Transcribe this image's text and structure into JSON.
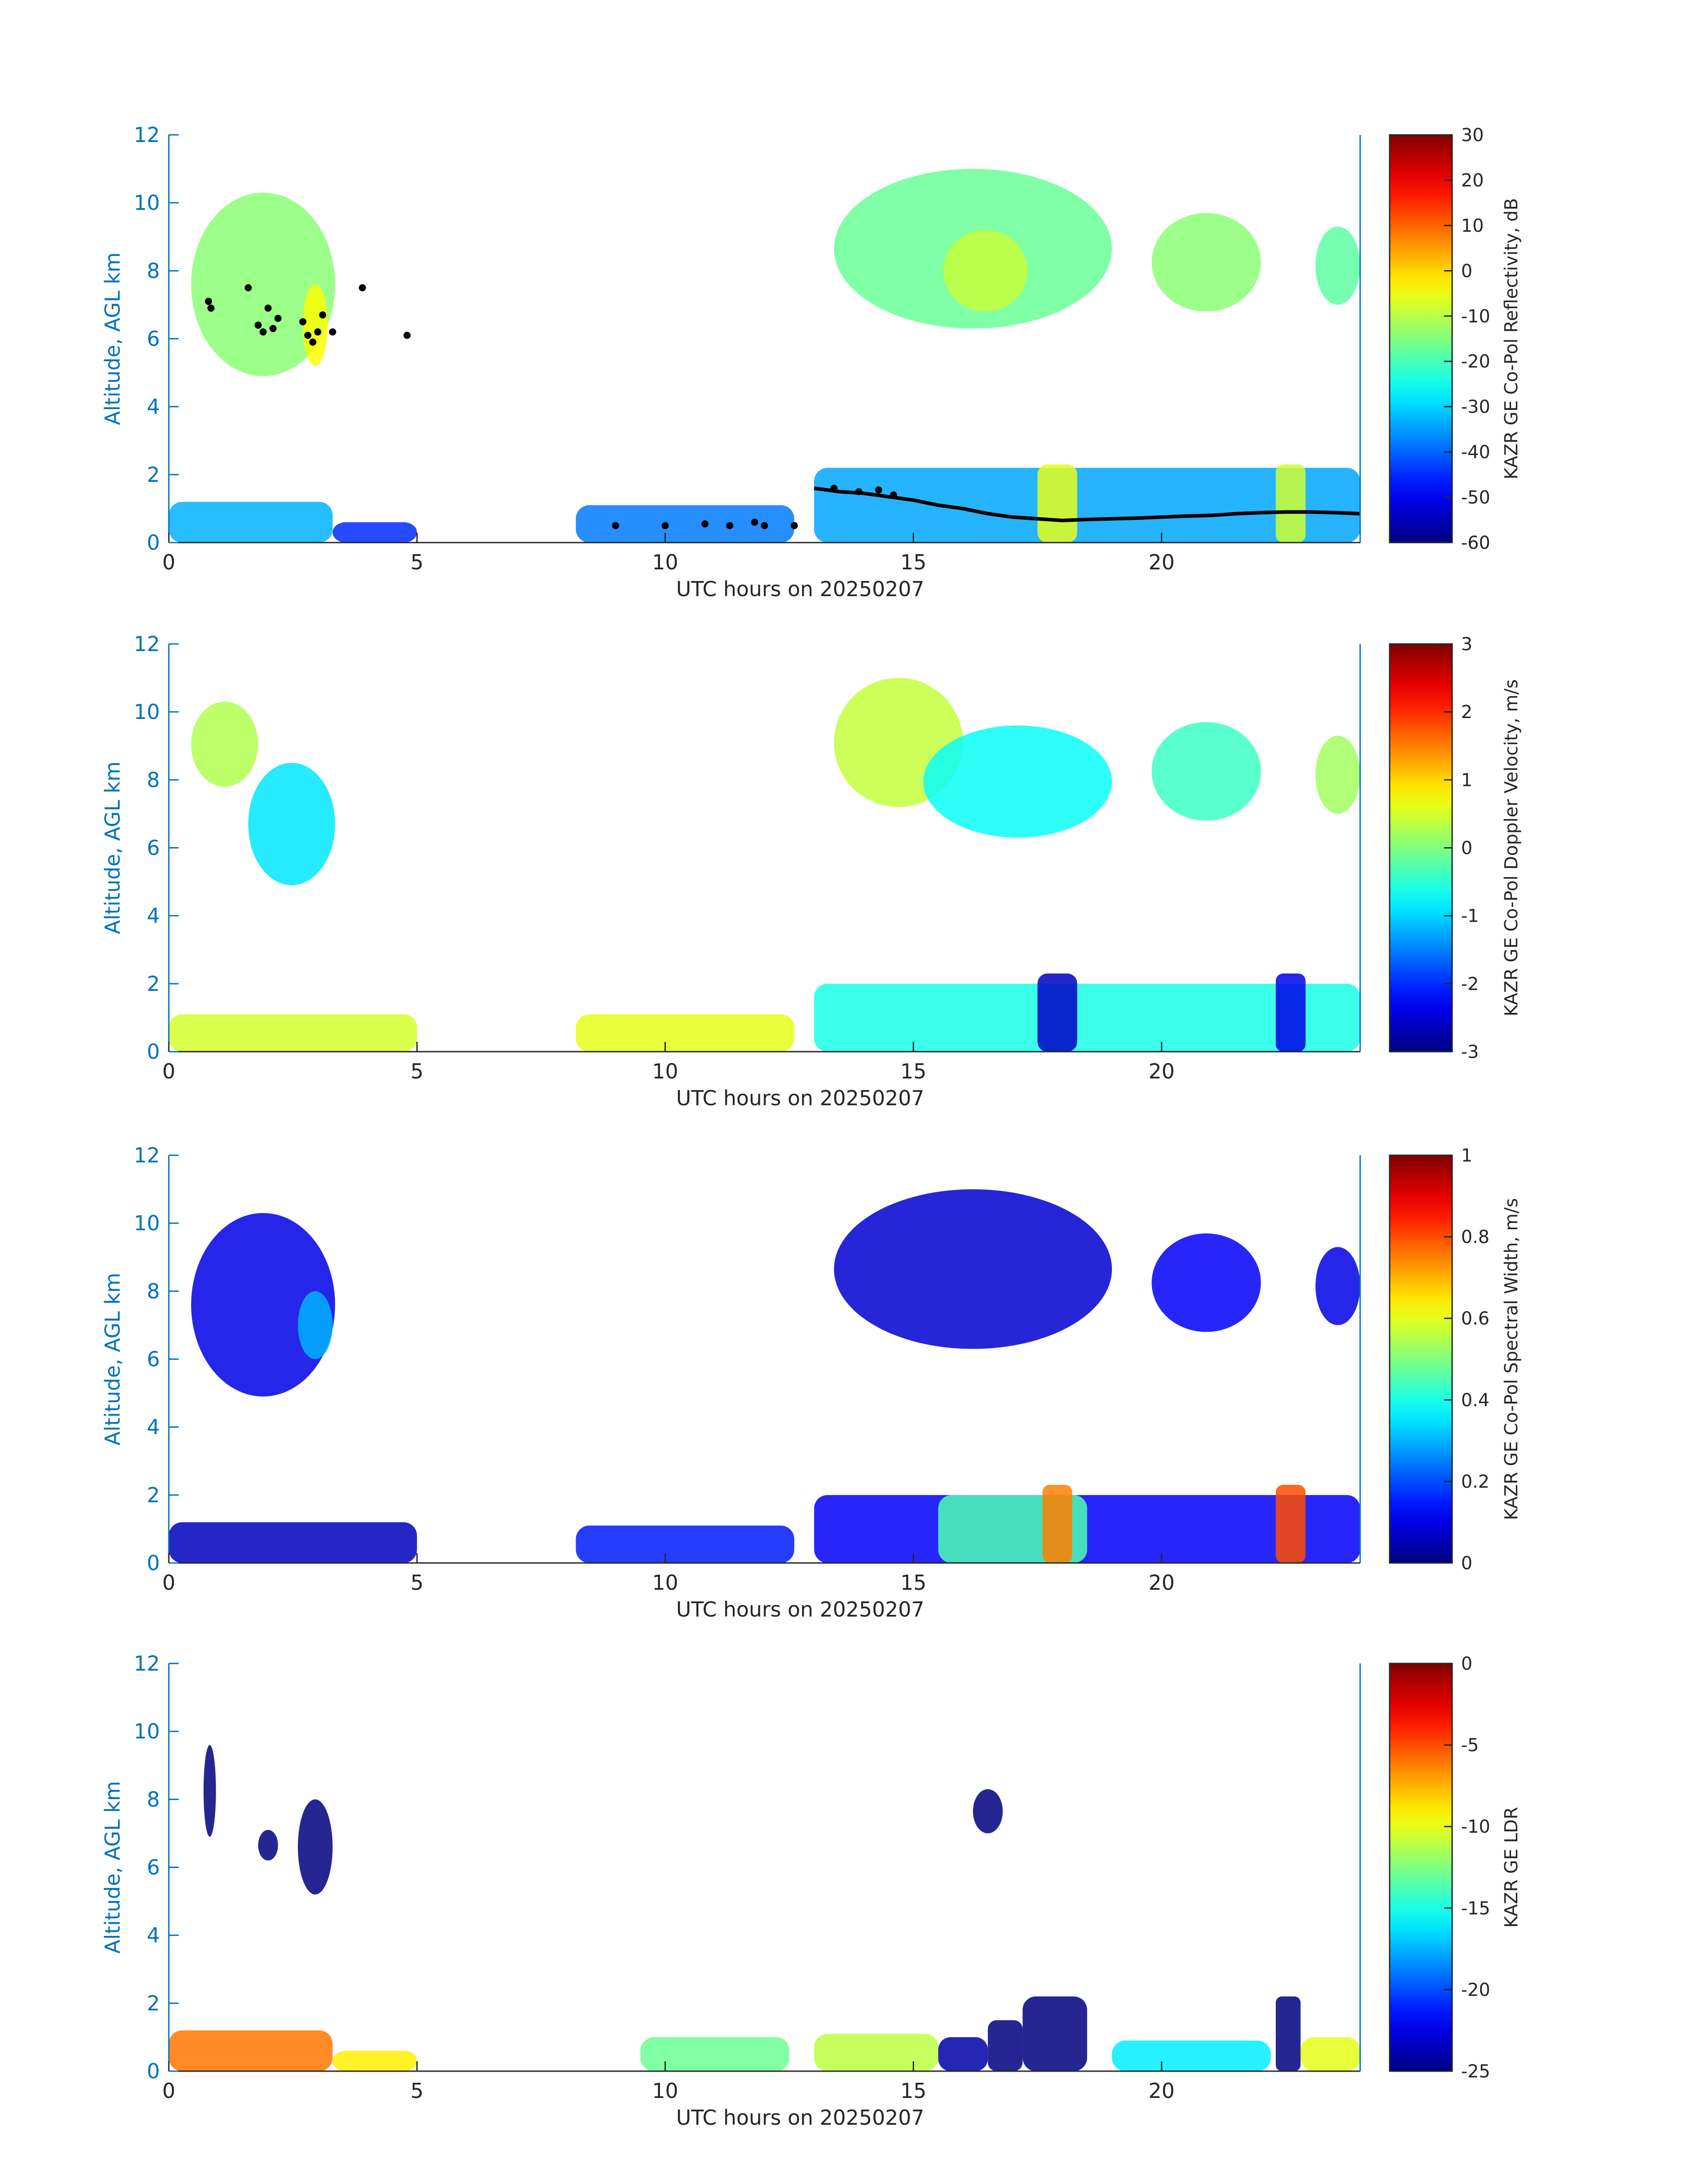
{
  "chart_data": [
    {
      "type": "heatmap",
      "title": "",
      "xlabel": "UTC hours on 20250207",
      "ylabel": "Altitude, AGL km",
      "xlim": [
        0,
        24
      ],
      "ylim": [
        0,
        12
      ],
      "xticks": [
        "0",
        "5",
        "10",
        "15",
        "20"
      ],
      "yticks": [
        "0",
        "2",
        "4",
        "6",
        "8",
        "10",
        "12"
      ],
      "colorbar": {
        "label": "KAZR GE Co-Pol Reflectivity, dB",
        "range": [
          -60,
          30
        ],
        "ticks": [
          "30",
          "20",
          "10",
          "0",
          "-10",
          "-20",
          "-30",
          "-40",
          "-50",
          "-60"
        ]
      },
      "regions": [
        {
          "x0": 0.45,
          "x1": 3.35,
          "y0": 4.9,
          "y1": 10.3,
          "value": -14
        },
        {
          "x0": 2.7,
          "x1": 3.2,
          "y0": 5.2,
          "y1": 7.6,
          "value": -4
        },
        {
          "x0": 13.4,
          "x1": 19.0,
          "y0": 6.3,
          "y1": 11.0,
          "value": -17
        },
        {
          "x0": 15.6,
          "x1": 17.3,
          "y0": 6.8,
          "y1": 9.2,
          "value": -9
        },
        {
          "x0": 19.8,
          "x1": 22.0,
          "y0": 6.8,
          "y1": 9.7,
          "value": -14
        },
        {
          "x0": 23.1,
          "x1": 24.0,
          "y0": 7.0,
          "y1": 9.3,
          "value": -18
        },
        {
          "x0": 0.0,
          "x1": 3.3,
          "y0": 0.0,
          "y1": 1.2,
          "value": -33
        },
        {
          "x0": 3.3,
          "x1": 5.0,
          "y0": 0.0,
          "y1": 0.6,
          "value": -45
        },
        {
          "x0": 8.2,
          "x1": 12.6,
          "y0": 0.0,
          "y1": 1.1,
          "value": -38
        },
        {
          "x0": 13.0,
          "x1": 24.0,
          "y0": 0.0,
          "y1": 2.2,
          "value": -34
        },
        {
          "x0": 17.5,
          "x1": 18.3,
          "y0": 0.0,
          "y1": 2.3,
          "value": -6
        },
        {
          "x0": 22.3,
          "x1": 22.9,
          "y0": 0.0,
          "y1": 2.3,
          "value": -8
        }
      ],
      "overlay_line": {
        "x": [
          13.0,
          13.5,
          14.0,
          14.5,
          15.0,
          15.5,
          16.0,
          16.5,
          17.0,
          17.5,
          18.0,
          18.5,
          19.0,
          19.5,
          20.0,
          20.5,
          21.0,
          21.5,
          22.0,
          22.5,
          23.0,
          23.5,
          24.0
        ],
        "y": [
          1.6,
          1.5,
          1.45,
          1.35,
          1.25,
          1.1,
          1.0,
          0.85,
          0.75,
          0.7,
          0.65,
          0.68,
          0.7,
          0.72,
          0.75,
          0.78,
          0.8,
          0.85,
          0.88,
          0.9,
          0.9,
          0.88,
          0.85
        ]
      },
      "overlay_points": {
        "x": [
          0.8,
          0.85,
          1.6,
          1.8,
          1.9,
          2.0,
          2.1,
          2.2,
          2.7,
          2.8,
          2.9,
          3.0,
          3.1,
          3.3,
          3.9,
          4.8,
          9.0,
          10.0,
          10.8,
          11.3,
          11.8,
          12.0,
          12.6,
          13.4,
          13.9,
          14.3,
          14.6
        ],
        "y": [
          7.1,
          6.9,
          7.5,
          6.4,
          6.2,
          6.9,
          6.3,
          6.6,
          6.5,
          6.1,
          5.9,
          6.2,
          6.7,
          6.2,
          7.5,
          6.1,
          0.5,
          0.5,
          0.55,
          0.5,
          0.6,
          0.5,
          0.5,
          1.6,
          1.5,
          1.55,
          1.4
        ]
      }
    },
    {
      "type": "heatmap",
      "title": "",
      "xlabel": "UTC hours on 20250207",
      "ylabel": "Altitude, AGL km",
      "xlim": [
        0,
        24
      ],
      "ylim": [
        0,
        12
      ],
      "xticks": [
        "0",
        "5",
        "10",
        "15",
        "20"
      ],
      "yticks": [
        "0",
        "2",
        "4",
        "6",
        "8",
        "10",
        "12"
      ],
      "colorbar": {
        "label": "KAZR GE Co-Pol Doppler Velocity, m/s",
        "range": [
          -3,
          3
        ],
        "ticks": [
          "3",
          "2",
          "1",
          "0",
          "-1",
          "-2",
          "-3"
        ]
      },
      "regions": [
        {
          "x0": 0.45,
          "x1": 1.8,
          "y0": 7.8,
          "y1": 10.3,
          "value": 0.3
        },
        {
          "x0": 1.6,
          "x1": 3.35,
          "y0": 4.9,
          "y1": 8.5,
          "value": -0.9
        },
        {
          "x0": 13.4,
          "x1": 16.0,
          "y0": 7.2,
          "y1": 11.0,
          "value": 0.4
        },
        {
          "x0": 15.2,
          "x1": 19.0,
          "y0": 6.3,
          "y1": 9.6,
          "value": -0.7
        },
        {
          "x0": 19.8,
          "x1": 22.0,
          "y0": 6.8,
          "y1": 9.7,
          "value": -0.4
        },
        {
          "x0": 23.1,
          "x1": 24.0,
          "y0": 7.0,
          "y1": 9.3,
          "value": 0.2
        },
        {
          "x0": 0.0,
          "x1": 5.0,
          "y0": 0.0,
          "y1": 1.1,
          "value": 0.5
        },
        {
          "x0": 8.2,
          "x1": 12.6,
          "y0": 0.0,
          "y1": 1.1,
          "value": 0.6
        },
        {
          "x0": 13.0,
          "x1": 24.0,
          "y0": 0.0,
          "y1": 2.0,
          "value": -0.6
        },
        {
          "x0": 17.5,
          "x1": 18.3,
          "y0": 0.0,
          "y1": 2.3,
          "value": -2.6
        },
        {
          "x0": 22.3,
          "x1": 22.9,
          "y0": 0.0,
          "y1": 2.3,
          "value": -2.4
        }
      ]
    },
    {
      "type": "heatmap",
      "title": "",
      "xlabel": "UTC hours on 20250207",
      "ylabel": "Altitude, AGL km",
      "xlim": [
        0,
        24
      ],
      "ylim": [
        0,
        12
      ],
      "xticks": [
        "0",
        "5",
        "10",
        "15",
        "20"
      ],
      "yticks": [
        "0",
        "2",
        "4",
        "6",
        "8",
        "10",
        "12"
      ],
      "colorbar": {
        "label": "KAZR GE Co-Pol Spectral Width, m/s",
        "range": [
          0,
          1
        ],
        "ticks": [
          "1",
          "0.8",
          "0.6",
          "0.4",
          "0.2",
          "0"
        ]
      },
      "regions": [
        {
          "x0": 0.45,
          "x1": 3.35,
          "y0": 4.9,
          "y1": 10.3,
          "value": 0.1
        },
        {
          "x0": 2.6,
          "x1": 3.3,
          "y0": 6.0,
          "y1": 8.0,
          "value": 0.3
        },
        {
          "x0": 13.4,
          "x1": 19.0,
          "y0": 6.3,
          "y1": 11.0,
          "value": 0.08
        },
        {
          "x0": 19.8,
          "x1": 22.0,
          "y0": 6.8,
          "y1": 9.7,
          "value": 0.12
        },
        {
          "x0": 23.1,
          "x1": 24.0,
          "y0": 7.0,
          "y1": 9.3,
          "value": 0.1
        },
        {
          "x0": 0.0,
          "x1": 5.0,
          "y0": 0.0,
          "y1": 1.2,
          "value": 0.06
        },
        {
          "x0": 8.2,
          "x1": 12.6,
          "y0": 0.0,
          "y1": 1.1,
          "value": 0.15
        },
        {
          "x0": 13.0,
          "x1": 24.0,
          "y0": 0.0,
          "y1": 2.0,
          "value": 0.12
        },
        {
          "x0": 15.5,
          "x1": 18.5,
          "y0": 0.0,
          "y1": 2.0,
          "value": 0.45
        },
        {
          "x0": 17.6,
          "x1": 18.2,
          "y0": 0.0,
          "y1": 2.3,
          "value": 0.75
        },
        {
          "x0": 22.3,
          "x1": 22.9,
          "y0": 0.0,
          "y1": 2.3,
          "value": 0.8
        }
      ]
    },
    {
      "type": "heatmap",
      "title": "",
      "xlabel": "UTC hours on 20250207",
      "ylabel": "Altitude, AGL km",
      "xlim": [
        0,
        24
      ],
      "ylim": [
        0,
        12
      ],
      "xticks": [
        "0",
        "5",
        "10",
        "15",
        "20"
      ],
      "yticks": [
        "0",
        "2",
        "4",
        "6",
        "8",
        "10",
        "12"
      ],
      "colorbar": {
        "label": "KAZR GE LDR",
        "range": [
          -25,
          0
        ],
        "ticks": [
          "0",
          "-5",
          "-10",
          "-15",
          "-20",
          "-25"
        ]
      },
      "regions": [
        {
          "x0": 0.7,
          "x1": 0.95,
          "y0": 6.9,
          "y1": 9.6,
          "value": -25
        },
        {
          "x0": 1.8,
          "x1": 2.2,
          "y0": 6.2,
          "y1": 7.1,
          "value": -25
        },
        {
          "x0": 2.6,
          "x1": 3.3,
          "y0": 5.2,
          "y1": 8.0,
          "value": -25
        },
        {
          "x0": 16.2,
          "x1": 16.8,
          "y0": 7.0,
          "y1": 8.3,
          "value": -25
        },
        {
          "x0": 0.0,
          "x1": 3.3,
          "y0": 0.0,
          "y1": 1.2,
          "value": -6
        },
        {
          "x0": 3.3,
          "x1": 5.0,
          "y0": 0.0,
          "y1": 0.6,
          "value": -9
        },
        {
          "x0": 9.5,
          "x1": 12.5,
          "y0": 0.0,
          "y1": 1.0,
          "value": -13
        },
        {
          "x0": 13.0,
          "x1": 15.5,
          "y0": 0.0,
          "y1": 1.1,
          "value": -11
        },
        {
          "x0": 15.5,
          "x1": 16.5,
          "y0": 0.0,
          "y1": 1.0,
          "value": -24
        },
        {
          "x0": 16.5,
          "x1": 17.2,
          "y0": 0.0,
          "y1": 1.5,
          "value": -25
        },
        {
          "x0": 17.2,
          "x1": 18.5,
          "y0": 0.0,
          "y1": 2.2,
          "value": -25
        },
        {
          "x0": 19.0,
          "x1": 22.2,
          "y0": 0.0,
          "y1": 0.9,
          "value": -16
        },
        {
          "x0": 22.3,
          "x1": 22.8,
          "y0": 0.0,
          "y1": 2.2,
          "value": -25
        },
        {
          "x0": 22.8,
          "x1": 24.0,
          "y0": 0.0,
          "y1": 1.0,
          "value": -10
        }
      ]
    }
  ]
}
